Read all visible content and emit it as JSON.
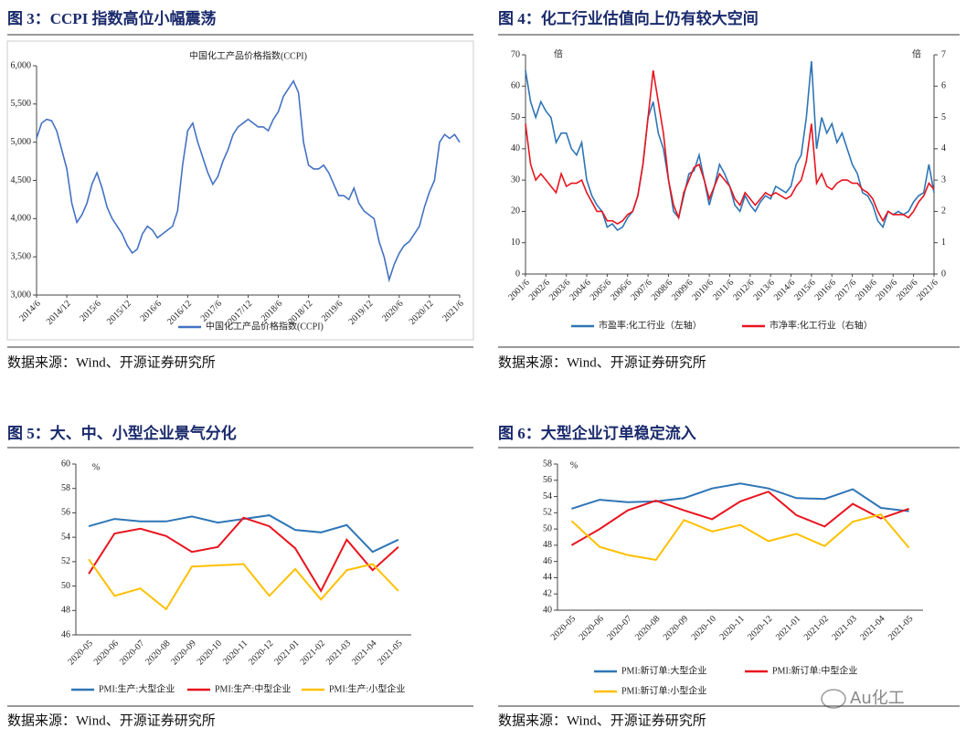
{
  "chart_data": [
    {
      "type": "line",
      "figure_title": "图 3：CCPI 指数高位小幅震荡",
      "title": "中国化工产品价格指数(CCPI)",
      "source": "数据来源：Wind、开源证券研究所",
      "x": [
        "2014/6",
        "2014/7",
        "2014/8",
        "2014/9",
        "2014/10",
        "2014/11",
        "2014/12",
        "2015/1",
        "2015/2",
        "2015/3",
        "2015/4",
        "2015/5",
        "2015/6",
        "2015/7",
        "2015/8",
        "2015/9",
        "2015/10",
        "2015/11",
        "2015/12",
        "2016/1",
        "2016/2",
        "2016/3",
        "2016/4",
        "2016/5",
        "2016/6",
        "2016/7",
        "2016/8",
        "2016/9",
        "2016/10",
        "2016/11",
        "2016/12",
        "2017/1",
        "2017/2",
        "2017/3",
        "2017/4",
        "2017/5",
        "2017/6",
        "2017/7",
        "2017/8",
        "2017/9",
        "2017/10",
        "2017/11",
        "2017/12",
        "2018/1",
        "2018/2",
        "2018/3",
        "2018/4",
        "2018/5",
        "2018/6",
        "2018/7",
        "2018/8",
        "2018/9",
        "2018/10",
        "2018/11",
        "2018/12",
        "2019/1",
        "2019/2",
        "2019/3",
        "2019/4",
        "2019/5",
        "2019/6",
        "2019/7",
        "2019/8",
        "2019/9",
        "2019/10",
        "2019/11",
        "2019/12",
        "2020/1",
        "2020/2",
        "2020/3",
        "2020/4",
        "2020/5",
        "2020/6",
        "2020/7",
        "2020/8",
        "2020/9",
        "2020/10",
        "2020/11",
        "2020/12",
        "2021/1",
        "2021/2",
        "2021/3",
        "2021/4",
        "2021/5",
        "2021/6"
      ],
      "xticks": [
        "2014/6",
        "2014/12",
        "2015/6",
        "2015/12",
        "2016/6",
        "2016/12",
        "2017/6",
        "2017/12",
        "2018/6",
        "2018/12",
        "2019/6",
        "2019/12",
        "2020/6",
        "2020/12",
        "2021/6"
      ],
      "series": [
        {
          "name": "中国化工产品价格指数(CCPI)",
          "color": "#4472c4",
          "values": [
            5050,
            5250,
            5300,
            5280,
            5150,
            4900,
            4650,
            4200,
            3950,
            4050,
            4200,
            4450,
            4600,
            4400,
            4150,
            4000,
            3900,
            3800,
            3650,
            3550,
            3600,
            3800,
            3900,
            3850,
            3750,
            3800,
            3850,
            3900,
            4100,
            4700,
            5150,
            5250,
            5000,
            4800,
            4600,
            4450,
            4550,
            4750,
            4900,
            5100,
            5200,
            5250,
            5300,
            5250,
            5200,
            5200,
            5150,
            5300,
            5400,
            5600,
            5700,
            5800,
            5650,
            5000,
            4700,
            4650,
            4650,
            4700,
            4600,
            4450,
            4300,
            4300,
            4250,
            4400,
            4200,
            4100,
            4050,
            4000,
            3700,
            3500,
            3200,
            3400,
            3550,
            3650,
            3700,
            3800,
            3900,
            4150,
            4350,
            4500,
            5000,
            5100,
            5050,
            5100,
            5000
          ]
        }
      ],
      "ylim": [
        3000,
        6000
      ],
      "yticks": [
        {
          "value": 3000,
          "label": "3,000"
        },
        {
          "value": 3500,
          "label": "3,500"
        },
        {
          "value": 4000,
          "label": "4,000"
        },
        {
          "value": 4500,
          "label": "4,500"
        },
        {
          "value": 5000,
          "label": "5,000"
        },
        {
          "value": 5500,
          "label": "5,500"
        },
        {
          "value": 6000,
          "label": "6,000"
        }
      ],
      "legend": "bottom"
    },
    {
      "type": "line",
      "figure_title": "图 4：化工行业估值向上仍有较大空间",
      "source": "数据来源：Wind、开源证券研究所",
      "y_label": "倍",
      "y2_label": "倍",
      "x": [
        "2001/6",
        "2001/9",
        "2001/12",
        "2002/3",
        "2002/6",
        "2002/9",
        "2002/12",
        "2003/3",
        "2003/6",
        "2003/9",
        "2003/12",
        "2004/3",
        "2004/6",
        "2004/9",
        "2004/12",
        "2005/3",
        "2005/6",
        "2005/9",
        "2005/12",
        "2006/3",
        "2006/6",
        "2006/9",
        "2006/12",
        "2007/3",
        "2007/6",
        "2007/9",
        "2007/12",
        "2008/3",
        "2008/6",
        "2008/9",
        "2008/12",
        "2009/3",
        "2009/6",
        "2009/9",
        "2009/12",
        "2010/3",
        "2010/6",
        "2010/9",
        "2010/12",
        "2011/3",
        "2011/6",
        "2011/9",
        "2011/12",
        "2012/3",
        "2012/6",
        "2012/9",
        "2012/12",
        "2013/3",
        "2013/6",
        "2013/9",
        "2013/12",
        "2014/3",
        "2014/6",
        "2014/9",
        "2014/12",
        "2015/3",
        "2015/6",
        "2015/9",
        "2015/12",
        "2016/3",
        "2016/6",
        "2016/9",
        "2016/12",
        "2017/3",
        "2017/6",
        "2017/9",
        "2017/12",
        "2018/3",
        "2018/6",
        "2018/9",
        "2018/12",
        "2019/3",
        "2019/6",
        "2019/9",
        "2019/12",
        "2020/3",
        "2020/6",
        "2020/9",
        "2020/12",
        "2021/3",
        "2021/6"
      ],
      "xticks": [
        "2001/6",
        "2002/6",
        "2003/6",
        "2004/6",
        "2005/6",
        "2006/6",
        "2007/6",
        "2008/6",
        "2009/6",
        "2010/6",
        "2011/6",
        "2012/6",
        "2013/6",
        "2014/6",
        "2015/6",
        "2016/6",
        "2017/6",
        "2018/6",
        "2019/6",
        "2020/6",
        "2021/6"
      ],
      "series": [
        {
          "name": "市盈率:化工行业（左轴）",
          "color": "#2e75b6",
          "values": [
            65,
            55,
            50,
            55,
            52,
            50,
            42,
            45,
            45,
            40,
            38,
            42,
            30,
            25,
            22,
            20,
            15,
            16,
            14,
            15,
            18,
            20,
            25,
            35,
            50,
            55,
            45,
            40,
            30,
            20,
            18,
            25,
            32,
            33,
            38,
            30,
            22,
            28,
            35,
            32,
            28,
            22,
            20,
            25,
            22,
            20,
            23,
            25,
            24,
            28,
            27,
            26,
            28,
            35,
            38,
            50,
            68,
            40,
            50,
            45,
            48,
            42,
            45,
            40,
            35,
            32,
            26,
            25,
            22,
            17,
            15,
            20,
            19,
            20,
            19,
            20,
            23,
            25,
            26,
            35,
            26
          ]
        },
        {
          "name": "市净率:化工行业（右轴）",
          "color": "#e8141e",
          "axis": "y2",
          "values": [
            4.8,
            3.5,
            3.0,
            3.2,
            3.0,
            2.8,
            2.6,
            3.2,
            2.8,
            2.9,
            2.9,
            3.0,
            2.6,
            2.3,
            2.0,
            2.0,
            1.7,
            1.7,
            1.6,
            1.7,
            1.9,
            2.0,
            2.5,
            3.5,
            5.0,
            6.5,
            5.5,
            4.5,
            3.0,
            2.2,
            1.8,
            2.6,
            3.0,
            3.4,
            3.5,
            3.0,
            2.4,
            2.8,
            3.2,
            3.0,
            2.8,
            2.4,
            2.2,
            2.6,
            2.4,
            2.2,
            2.4,
            2.6,
            2.5,
            2.6,
            2.5,
            2.4,
            2.5,
            2.8,
            3.0,
            3.6,
            4.8,
            2.9,
            3.2,
            2.8,
            2.7,
            2.9,
            3.0,
            3.0,
            2.9,
            2.9,
            2.7,
            2.6,
            2.4,
            2.0,
            1.7,
            2.0,
            1.9,
            1.9,
            1.9,
            1.8,
            2.0,
            2.3,
            2.5,
            2.9,
            2.7
          ]
        }
      ],
      "ylim": [
        0,
        70
      ],
      "yticks": [
        0,
        10,
        20,
        30,
        40,
        50,
        60,
        70
      ],
      "y2lim": [
        0,
        7
      ],
      "y2ticks": [
        0,
        1,
        2,
        3,
        4,
        5,
        6,
        7
      ],
      "legend": "bottom"
    },
    {
      "type": "line",
      "figure_title": "图 5：大、中、小型企业景气分化",
      "source": "数据来源：Wind、开源证券研究所",
      "y_label": "%",
      "categories": [
        "2020-05",
        "2020-06",
        "2020-07",
        "2020-08",
        "2020-09",
        "2020-10",
        "2020-11",
        "2020-12",
        "2021-01",
        "2021-02",
        "2021-03",
        "2021-04",
        "2021-05"
      ],
      "series": [
        {
          "name": "PMI:生产:大型企业",
          "color": "#2e75b6",
          "values": [
            54.9,
            55.5,
            55.3,
            55.3,
            55.7,
            55.2,
            55.5,
            55.8,
            54.6,
            54.4,
            55.0,
            52.8,
            53.8
          ]
        },
        {
          "name": "PMI:生产:中型企业",
          "color": "#e8141e",
          "values": [
            51.0,
            54.3,
            54.7,
            54.1,
            52.8,
            53.2,
            55.6,
            54.9,
            53.1,
            49.6,
            53.8,
            51.3,
            53.2
          ]
        },
        {
          "name": "PMI:生产:小型企业",
          "color": "#ffc000",
          "values": [
            52.2,
            49.2,
            49.8,
            48.1,
            51.6,
            51.7,
            51.8,
            49.2,
            51.4,
            48.9,
            51.3,
            51.8,
            49.6
          ]
        }
      ],
      "ylim": [
        46,
        60
      ],
      "yticks": [
        46,
        48,
        50,
        52,
        54,
        56,
        58,
        60
      ],
      "legend": "bottom"
    },
    {
      "type": "line",
      "figure_title": "图 6：大型企业订单稳定流入",
      "source": "数据来源：Wind、开源证券研究所",
      "y_label": "%",
      "categories": [
        "2020-05",
        "2020-06",
        "2020-07",
        "2020-08",
        "2020-09",
        "2020-10",
        "2020-11",
        "2020-12",
        "2021-01",
        "2021-02",
        "2021-03",
        "2021-04",
        "2021-05"
      ],
      "series": [
        {
          "name": "PMI:新订单:大型企业",
          "color": "#2e75b6",
          "values": [
            52.5,
            53.6,
            53.3,
            53.4,
            53.8,
            55.0,
            55.6,
            55.0,
            53.8,
            53.7,
            54.9,
            52.6,
            52.2
          ]
        },
        {
          "name": "PMI:新订单:中型企业",
          "color": "#e8141e",
          "values": [
            48.0,
            50.0,
            52.3,
            53.5,
            52.3,
            51.2,
            53.4,
            54.6,
            51.7,
            50.3,
            53.1,
            51.3,
            52.5
          ]
        },
        {
          "name": "PMI:新订单:小型企业",
          "color": "#ffc000",
          "values": [
            51.0,
            47.8,
            46.8,
            46.2,
            51.1,
            49.7,
            50.5,
            48.5,
            49.4,
            47.9,
            50.9,
            51.8,
            47.7
          ]
        }
      ],
      "ylim": [
        40,
        58
      ],
      "yticks": [
        40,
        42,
        44,
        46,
        48,
        50,
        52,
        54,
        56,
        58
      ],
      "legend": "bottom"
    }
  ],
  "watermark": "Au化工"
}
